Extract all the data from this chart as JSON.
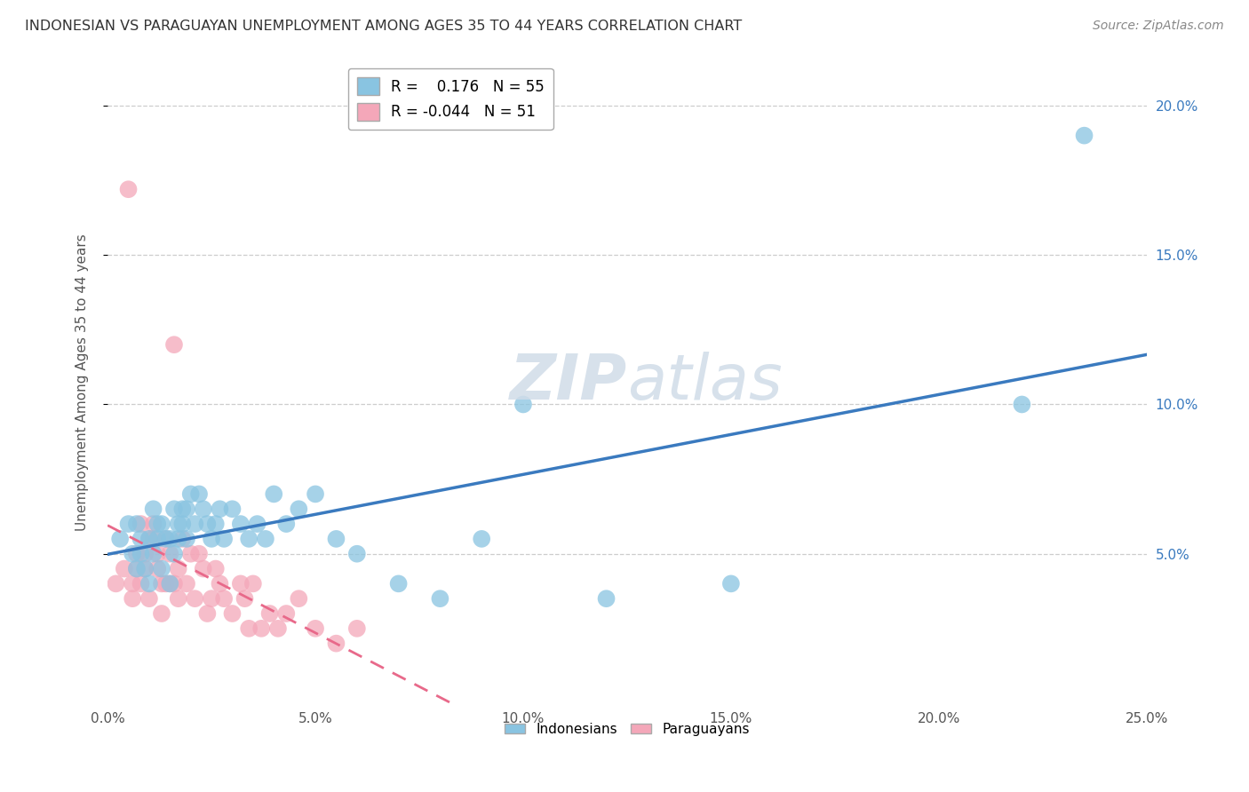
{
  "title": "INDONESIAN VS PARAGUAYAN UNEMPLOYMENT AMONG AGES 35 TO 44 YEARS CORRELATION CHART",
  "source": "Source: ZipAtlas.com",
  "ylabel": "Unemployment Among Ages 35 to 44 years",
  "xlim": [
    0.0,
    0.25
  ],
  "ylim": [
    0.0,
    0.215
  ],
  "xticks": [
    0.0,
    0.05,
    0.1,
    0.15,
    0.2,
    0.25
  ],
  "yticks": [
    0.05,
    0.1,
    0.15,
    0.2
  ],
  "xticklabels": [
    "0.0%",
    "5.0%",
    "10.0%",
    "15.0%",
    "20.0%",
    "25.0%"
  ],
  "right_yticklabels": [
    "5.0%",
    "10.0%",
    "15.0%",
    "20.0%"
  ],
  "blue_color": "#89c4e1",
  "pink_color": "#f4a7b9",
  "blue_line_color": "#3a7abf",
  "pink_line_color": "#e8698a",
  "background_color": "#ffffff",
  "grid_color": "#c8c8c8",
  "R_blue": 0.176,
  "N_blue": 55,
  "R_pink": -0.044,
  "N_pink": 51,
  "indonesian_x": [
    0.003,
    0.005,
    0.006,
    0.007,
    0.007,
    0.008,
    0.008,
    0.009,
    0.01,
    0.01,
    0.011,
    0.011,
    0.012,
    0.012,
    0.013,
    0.013,
    0.014,
    0.015,
    0.015,
    0.016,
    0.016,
    0.017,
    0.017,
    0.018,
    0.018,
    0.019,
    0.019,
    0.02,
    0.021,
    0.022,
    0.023,
    0.024,
    0.025,
    0.026,
    0.027,
    0.028,
    0.03,
    0.032,
    0.034,
    0.036,
    0.038,
    0.04,
    0.043,
    0.046,
    0.05,
    0.055,
    0.06,
    0.07,
    0.08,
    0.09,
    0.1,
    0.12,
    0.15,
    0.22,
    0.235
  ],
  "indonesian_y": [
    0.055,
    0.06,
    0.05,
    0.045,
    0.06,
    0.055,
    0.05,
    0.045,
    0.04,
    0.055,
    0.05,
    0.065,
    0.055,
    0.06,
    0.045,
    0.06,
    0.055,
    0.055,
    0.04,
    0.065,
    0.05,
    0.055,
    0.06,
    0.065,
    0.06,
    0.055,
    0.065,
    0.07,
    0.06,
    0.07,
    0.065,
    0.06,
    0.055,
    0.06,
    0.065,
    0.055,
    0.065,
    0.06,
    0.055,
    0.06,
    0.055,
    0.07,
    0.06,
    0.065,
    0.07,
    0.055,
    0.05,
    0.04,
    0.035,
    0.055,
    0.1,
    0.035,
    0.04,
    0.1,
    0.19
  ],
  "paraguayan_x": [
    0.002,
    0.004,
    0.005,
    0.006,
    0.006,
    0.007,
    0.007,
    0.008,
    0.008,
    0.009,
    0.009,
    0.01,
    0.01,
    0.011,
    0.011,
    0.012,
    0.012,
    0.013,
    0.013,
    0.014,
    0.014,
    0.015,
    0.015,
    0.016,
    0.016,
    0.017,
    0.017,
    0.018,
    0.019,
    0.02,
    0.021,
    0.022,
    0.023,
    0.024,
    0.025,
    0.026,
    0.027,
    0.028,
    0.03,
    0.032,
    0.033,
    0.034,
    0.035,
    0.037,
    0.039,
    0.041,
    0.043,
    0.046,
    0.05,
    0.055,
    0.06
  ],
  "paraguayan_y": [
    0.04,
    0.045,
    0.172,
    0.04,
    0.035,
    0.045,
    0.05,
    0.06,
    0.04,
    0.05,
    0.045,
    0.055,
    0.035,
    0.06,
    0.055,
    0.045,
    0.05,
    0.04,
    0.03,
    0.055,
    0.04,
    0.05,
    0.04,
    0.04,
    0.12,
    0.035,
    0.045,
    0.055,
    0.04,
    0.05,
    0.035,
    0.05,
    0.045,
    0.03,
    0.035,
    0.045,
    0.04,
    0.035,
    0.03,
    0.04,
    0.035,
    0.025,
    0.04,
    0.025,
    0.03,
    0.025,
    0.03,
    0.035,
    0.025,
    0.02,
    0.025
  ]
}
